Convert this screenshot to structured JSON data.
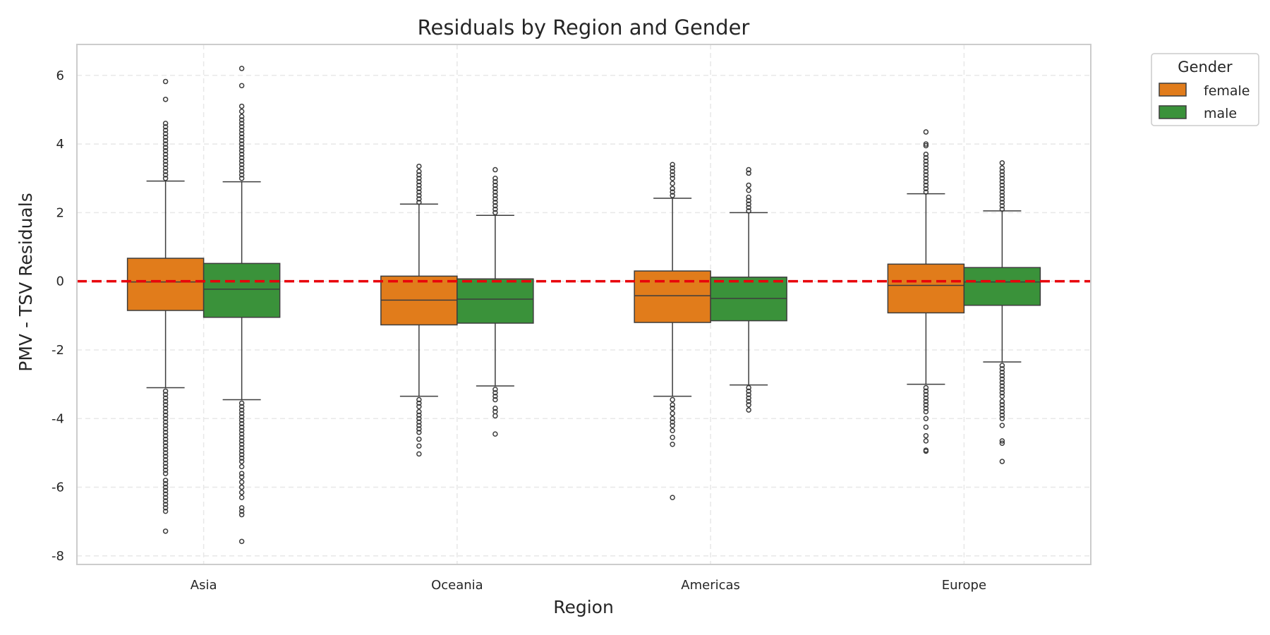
{
  "chart_data": {
    "type": "box",
    "title": "Residuals by Region and Gender",
    "xlabel": "Region",
    "ylabel": "PMV - TSV Residuals",
    "categories": [
      "Asia",
      "Oceania",
      "Americas",
      "Europe"
    ],
    "ylim": [
      -8.25,
      6.9
    ],
    "yticks": [
      -8,
      -6,
      -4,
      -2,
      0,
      2,
      4,
      6
    ],
    "grid": true,
    "reference_line": {
      "y": 0,
      "color": "#e8000b",
      "style": "dashed"
    },
    "legend": {
      "title": "Gender",
      "placement": "upper-right-outside"
    },
    "series": [
      {
        "name": "female",
        "color": "#e17c1b",
        "boxes": [
          {
            "category": "Asia",
            "whisker_low": -3.1,
            "q1": -0.85,
            "median": -0.02,
            "q3": 0.67,
            "whisker_high": 2.92,
            "outliers": [
              5.82,
              5.3,
              4.6,
              4.5,
              4.4,
              4.3,
              4.2,
              4.1,
              4.0,
              3.9,
              3.8,
              3.7,
              3.6,
              3.5,
              3.4,
              3.3,
              3.2,
              3.1,
              3.0,
              -3.2,
              -3.3,
              -3.4,
              -3.5,
              -3.6,
              -3.7,
              -3.8,
              -3.9,
              -4.0,
              -4.1,
              -4.2,
              -4.3,
              -4.4,
              -4.5,
              -4.6,
              -4.7,
              -4.8,
              -4.9,
              -5.0,
              -5.1,
              -5.2,
              -5.3,
              -5.4,
              -5.5,
              -5.6,
              -5.8,
              -5.9,
              -6.0,
              -6.1,
              -6.2,
              -6.3,
              -6.4,
              -6.5,
              -6.6,
              -6.7,
              -7.28
            ]
          },
          {
            "category": "Oceania",
            "whisker_low": -3.35,
            "q1": -1.27,
            "median": -0.55,
            "q3": 0.15,
            "whisker_high": 2.25,
            "outliers": [
              3.35,
              3.2,
              3.1,
              3.0,
              2.9,
              2.8,
              2.7,
              2.6,
              2.5,
              2.4,
              2.3,
              -3.45,
              -3.55,
              -3.65,
              -3.8,
              -3.9,
              -4.0,
              -4.1,
              -4.2,
              -4.3,
              -4.4,
              -4.6,
              -4.8,
              -5.03
            ]
          },
          {
            "category": "Americas",
            "whisker_low": -3.35,
            "q1": -1.2,
            "median": -0.42,
            "q3": 0.3,
            "whisker_high": 2.42,
            "outliers": [
              3.4,
              3.3,
              3.2,
              3.1,
              3.0,
              2.85,
              2.7,
              2.6,
              2.5,
              -3.45,
              -3.6,
              -3.7,
              -3.85,
              -4.0,
              -4.1,
              -4.2,
              -4.35,
              -4.55,
              -4.75,
              -6.3
            ]
          },
          {
            "category": "Europe",
            "whisker_low": -3.0,
            "q1": -0.92,
            "median": -0.12,
            "q3": 0.5,
            "whisker_high": 2.55,
            "outliers": [
              4.35,
              4.0,
              3.95,
              3.7,
              3.6,
              3.5,
              3.4,
              3.3,
              3.2,
              3.1,
              3.0,
              2.9,
              2.8,
              2.7,
              2.6,
              -3.1,
              -3.2,
              -3.3,
              -3.4,
              -3.5,
              -3.6,
              -3.7,
              -3.8,
              -4.0,
              -4.25,
              -4.5,
              -4.65,
              -4.92,
              -4.95
            ]
          }
        ]
      },
      {
        "name": "male",
        "color": "#3a923a",
        "boxes": [
          {
            "category": "Asia",
            "whisker_low": -3.45,
            "q1": -1.05,
            "median": -0.23,
            "q3": 0.52,
            "whisker_high": 2.9,
            "outliers": [
              6.2,
              5.7,
              5.1,
              4.95,
              4.8,
              4.7,
              4.6,
              4.5,
              4.4,
              4.3,
              4.2,
              4.1,
              4.0,
              3.9,
              3.8,
              3.7,
              3.6,
              3.5,
              3.4,
              3.3,
              3.2,
              3.1,
              3.0,
              -3.55,
              -3.65,
              -3.75,
              -3.85,
              -3.95,
              -4.05,
              -4.15,
              -4.25,
              -4.35,
              -4.45,
              -4.55,
              -4.65,
              -4.75,
              -4.85,
              -4.95,
              -5.05,
              -5.15,
              -5.25,
              -5.4,
              -5.6,
              -5.7,
              -5.85,
              -6.0,
              -6.15,
              -6.3,
              -6.6,
              -6.7,
              -6.8,
              -7.58
            ]
          },
          {
            "category": "Oceania",
            "whisker_low": -3.05,
            "q1": -1.22,
            "median": -0.52,
            "q3": 0.07,
            "whisker_high": 1.92,
            "outliers": [
              3.25,
              3.0,
              2.9,
              2.8,
              2.7,
              2.6,
              2.5,
              2.4,
              2.3,
              2.2,
              2.1,
              2.0,
              -3.15,
              -3.25,
              -3.35,
              -3.45,
              -3.7,
              -3.8,
              -3.92,
              -4.45
            ]
          },
          {
            "category": "Americas",
            "whisker_low": -3.02,
            "q1": -1.15,
            "median": -0.5,
            "q3": 0.12,
            "whisker_high": 2.0,
            "outliers": [
              3.25,
              3.15,
              2.8,
              2.65,
              2.45,
              2.35,
              2.25,
              2.15,
              2.05,
              -3.1,
              -3.2,
              -3.3,
              -3.4,
              -3.5,
              -3.6,
              -3.75
            ]
          },
          {
            "category": "Europe",
            "whisker_low": -2.35,
            "q1": -0.7,
            "median": -0.02,
            "q3": 0.4,
            "whisker_high": 2.05,
            "outliers": [
              3.45,
              3.3,
              3.2,
              3.1,
              3.0,
              2.9,
              2.8,
              2.7,
              2.6,
              2.5,
              2.4,
              2.3,
              2.2,
              2.1,
              -2.45,
              -2.55,
              -2.65,
              -2.75,
              -2.85,
              -2.95,
              -3.05,
              -3.15,
              -3.25,
              -3.35,
              -3.5,
              -3.6,
              -3.7,
              -3.8,
              -3.9,
              -4.0,
              -4.2,
              -4.65,
              -4.72,
              -5.25
            ]
          }
        ]
      }
    ]
  }
}
